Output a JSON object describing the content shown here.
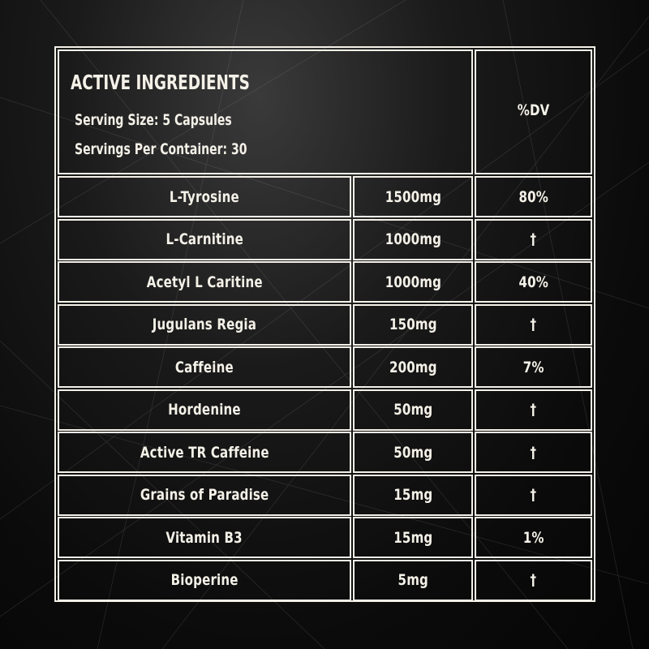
{
  "header": {
    "title": "ACTIVE INGREDIENTS",
    "serving_size": "Serving Size:  5 Capsules",
    "servings_per_container": "Servings Per Container: 30",
    "dv_label": "%DV"
  },
  "rows": [
    {
      "name": "L-Tyrosine",
      "amount": "1500mg",
      "dv": "80%"
    },
    {
      "name": "L-Carnitine",
      "amount": "1000mg",
      "dv": "†"
    },
    {
      "name": "Acetyl L Caritine",
      "amount": "1000mg",
      "dv": "40%"
    },
    {
      "name": "Jugulans Regia",
      "amount": "150mg",
      "dv": "†"
    },
    {
      "name": "Caffeine",
      "amount": "200mg",
      "dv": "7%"
    },
    {
      "name": "Hordenine",
      "amount": "50mg",
      "dv": "†"
    },
    {
      "name": "Active TR  Caffeine",
      "amount": "50mg",
      "dv": "†"
    },
    {
      "name": "Grains of Paradise",
      "amount": "15mg",
      "dv": "†"
    },
    {
      "name": "Vitamin B3",
      "amount": "15mg",
      "dv": "1%"
    },
    {
      "name": "Bioperine",
      "amount": "5mg",
      "dv": "†"
    }
  ],
  "colors": {
    "background": "#0b0b0b",
    "text": "#f4f1e8",
    "border": "#f4f1e8"
  }
}
